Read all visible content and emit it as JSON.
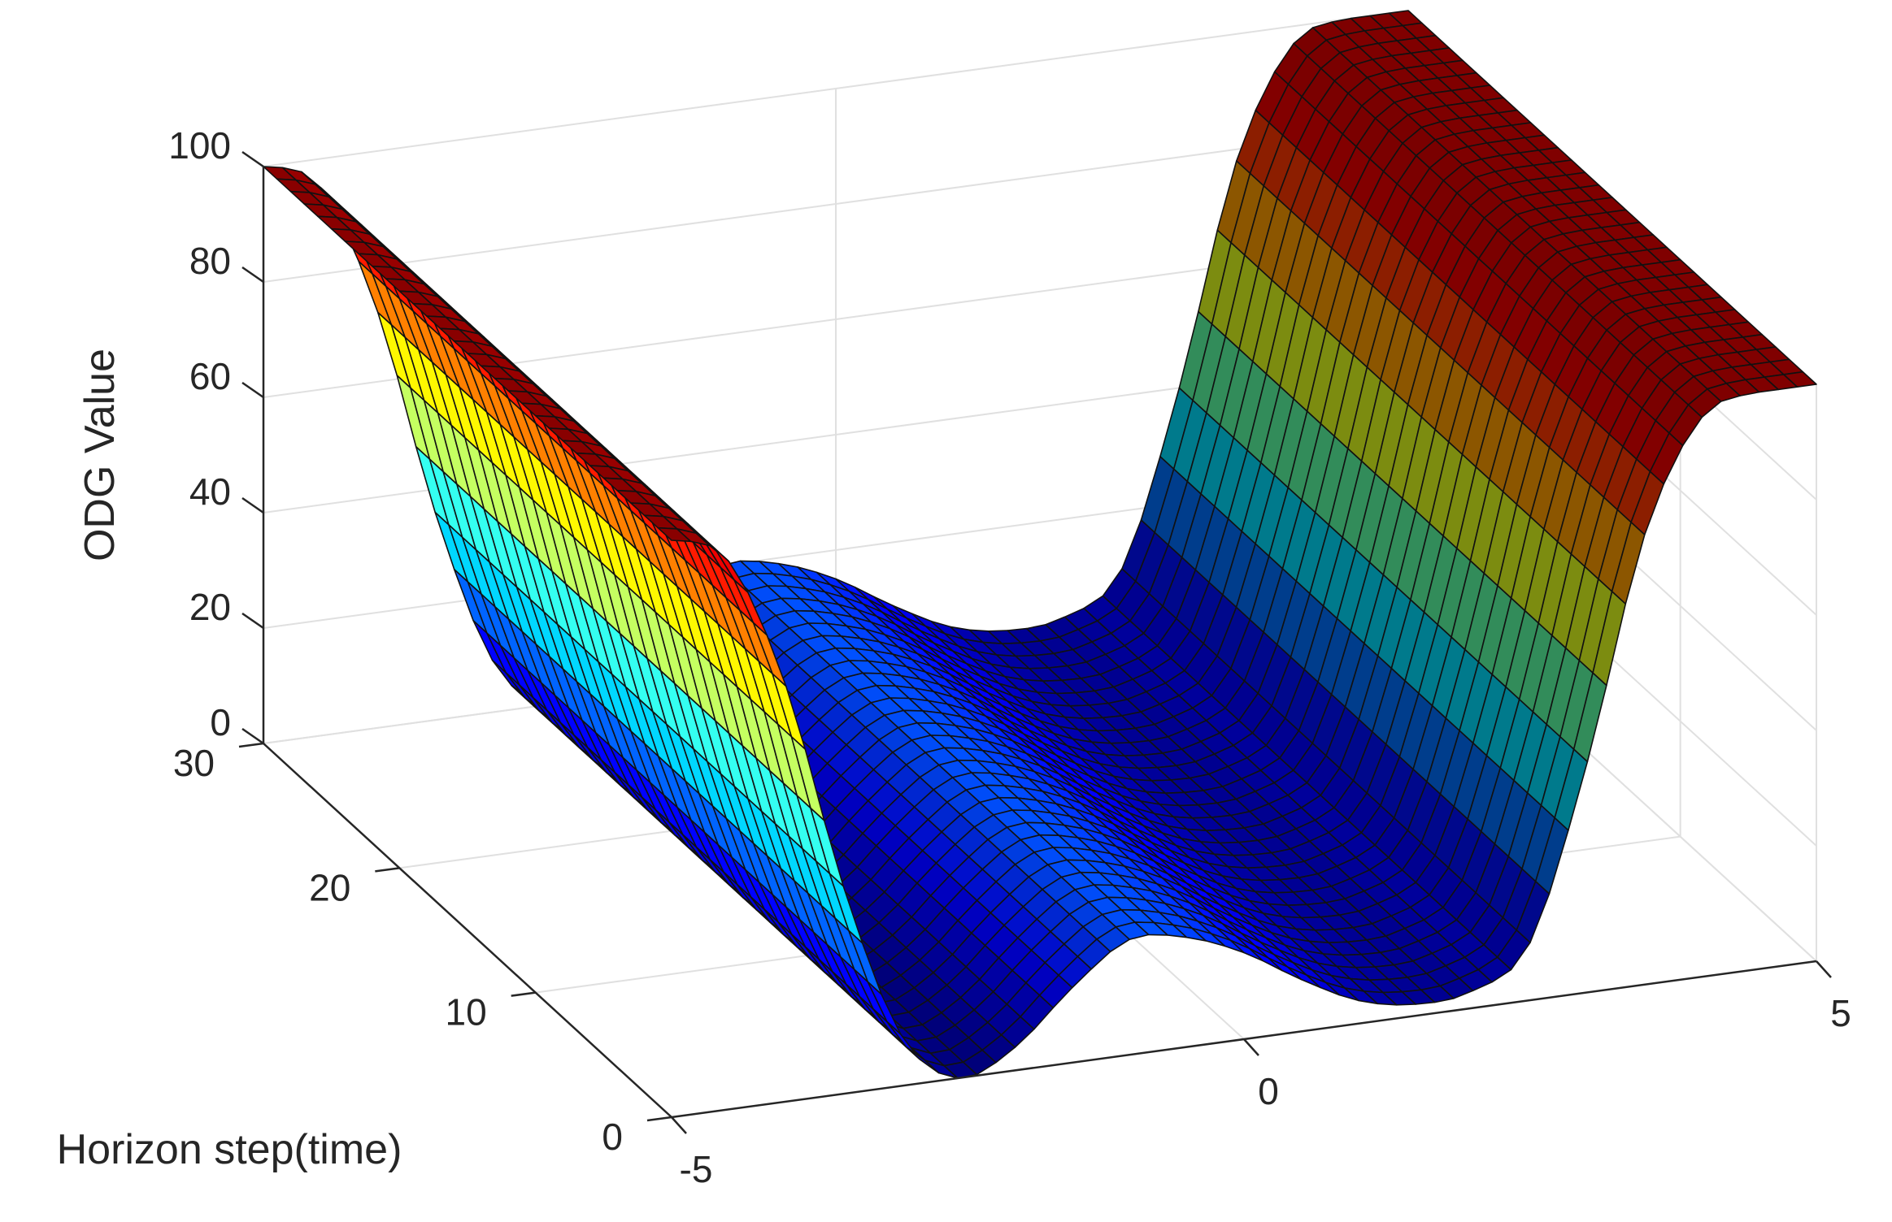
{
  "chart_data": {
    "type": "surface",
    "title": "",
    "xlabel": "",
    "ylabel": "Horizon step(time)",
    "zlabel": "ODG Value",
    "xlim": [
      -5,
      5
    ],
    "ylim": [
      0,
      30
    ],
    "zlim": [
      0,
      100
    ],
    "x_ticks": [
      "-5",
      "0",
      "5"
    ],
    "y_ticks": [
      "0",
      "10",
      "20",
      "30"
    ],
    "z_ticks": [
      "0",
      "20",
      "40",
      "60",
      "80",
      "100"
    ],
    "colormap": "jet",
    "grid": true,
    "profile_along_x": {
      "x": [
        -5,
        -4.5,
        -4,
        -3.5,
        -3,
        -2.5,
        -2,
        -1.5,
        -1,
        -0.5,
        0,
        0.5,
        1,
        1.5,
        2,
        2.5,
        3,
        3.5,
        4,
        4.5,
        5
      ],
      "z": [
        100,
        95,
        72,
        36,
        9,
        0,
        4,
        13,
        20,
        19,
        15,
        9,
        4,
        2,
        3,
        10,
        40,
        78,
        97,
        100,
        100
      ]
    },
    "constant_along_y": true
  }
}
